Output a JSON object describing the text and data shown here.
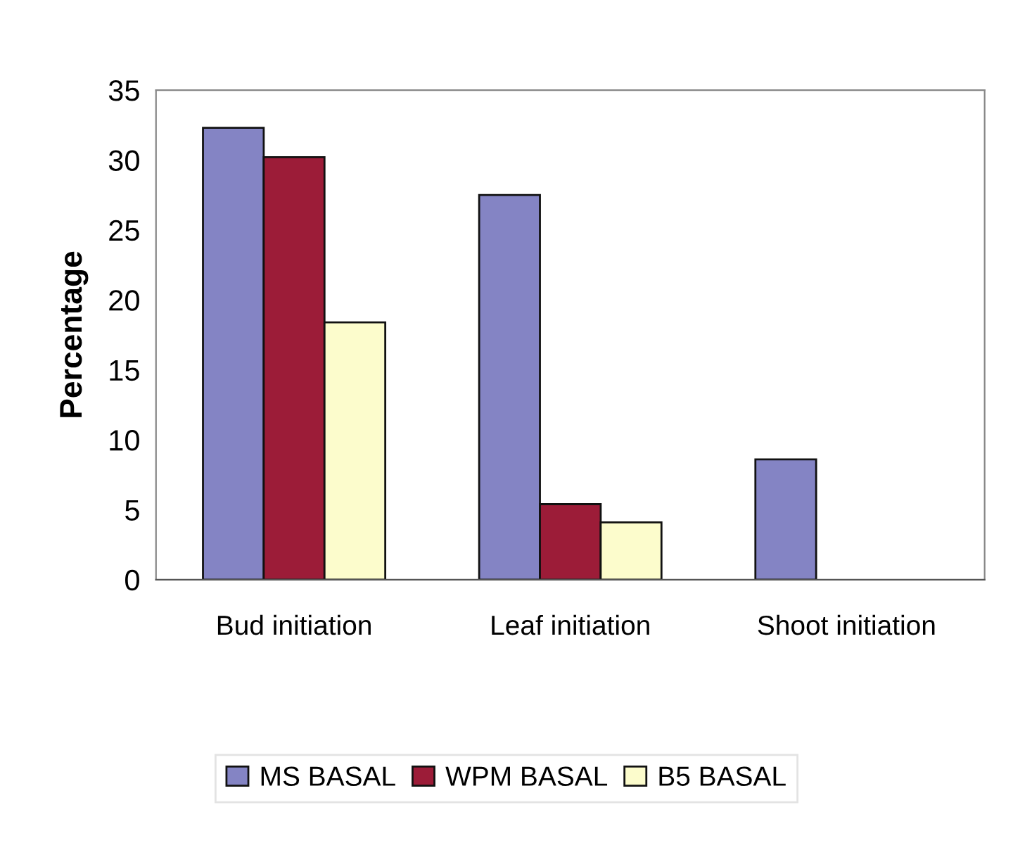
{
  "chart_data": {
    "type": "bar",
    "ylabel": "Percentage",
    "categories": [
      "Bud initiation",
      "Leaf initiation",
      "Shoot initiation"
    ],
    "series": [
      {
        "name": "MS BASAL",
        "color": "#8484c4",
        "values": [
          32.3,
          27.5,
          8.6
        ]
      },
      {
        "name": "WPM BASAL",
        "color": "#9c1c38",
        "values": [
          30.2,
          5.4,
          null
        ]
      },
      {
        "name": "B5 BASAL",
        "color": "#fcfccc",
        "values": [
          18.4,
          4.1,
          null
        ]
      }
    ],
    "ylim": [
      0,
      35
    ],
    "yticks": [
      0,
      5,
      10,
      15,
      20,
      25,
      30,
      35
    ],
    "grid": false,
    "legend": "bottom"
  }
}
